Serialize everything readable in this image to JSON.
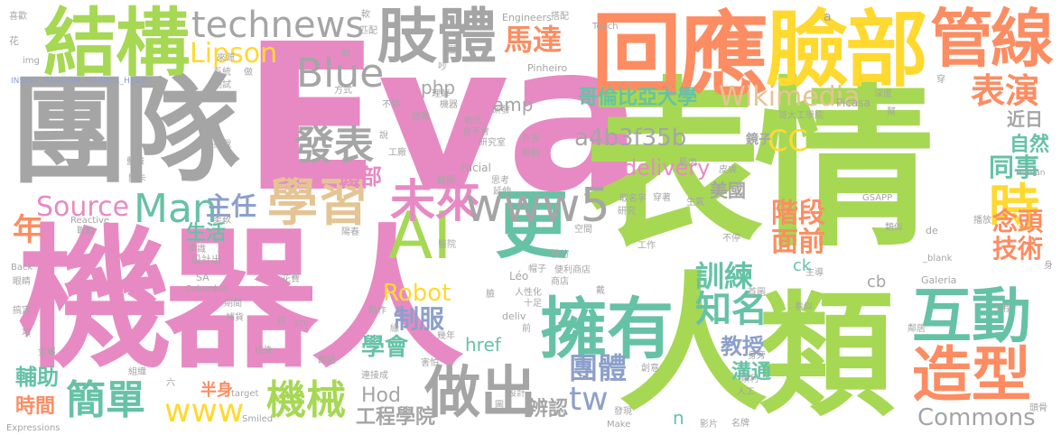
{
  "palette": {
    "pink": "#e78ac3",
    "green": "#a6d854",
    "gray": "#a5a5a5",
    "yellow": "#ffd92f",
    "orange": "#fc8d62",
    "teal": "#66c2a5",
    "blue": "#8da0cb",
    "tan": "#e5c494"
  },
  "words": {
    "w1": "Eva",
    "w2": "表情",
    "w3": "機器人",
    "w4": "團隊",
    "w5": "類",
    "w6": "人",
    "w7": "回應",
    "w8": "臉部",
    "w9": "結構",
    "w10": "肢體",
    "w11": "管線",
    "w12": "擁有",
    "w13": "互動",
    "w14": "造型",
    "w15": "AI",
    "w16": "更",
    "w17": "學習",
    "w18": "未來",
    "w19": "做出",
    "w20": "簡單",
    "w21": "機械",
    "w22": "發表",
    "w23": "technews",
    "w24": "Blue",
    "w25": "www5",
    "w26": "表演",
    "w27": "馬達",
    "w28": "Lipson",
    "w29": "哥倫比亞大學",
    "w30": "Wikimedia",
    "w31": "CC",
    "w32": "Man",
    "w33": "Source",
    "w34": "主任",
    "w35": "年",
    "w36": "時",
    "w37": "知名",
    "w38": "團體",
    "w39": "www",
    "w40": "tw",
    "w41": "Commons",
    "w42": "Robot",
    "w43": "制服",
    "w44": "學會",
    "w45": "教授",
    "w46": "同事",
    "w47": "技術",
    "w48": "面前",
    "w49": "階段",
    "w50": "自然",
    "w51": "念頭",
    "w52": "訓練",
    "w53": "頭部",
    "w54": "php",
    "w55": "amp",
    "w56": "a4b3f35b",
    "w57": "delivery",
    "w58": "美國",
    "w59": "生活",
    "w60": "輔助",
    "w61": "時間",
    "w62": "Hod",
    "w63": "工程學院",
    "w64": "辨認",
    "w65": "溝通",
    "w66": "近日",
    "w67": "半身",
    "w68": "href",
    "w69": "ck",
    "w70": "cb",
    "w71": "n",
    "w72": "鏡子",
    "w73": "設計出",
    "w74": "Columbia",
    "w75": "SA",
    "w76": "Facial",
    "w77": "Léo",
    "w78": "deliv",
    "w79": "Galeria",
    "w80": "Picasa",
    "w81": "Pinheiro",
    "w82": "Engineers",
    "w83": "Teach",
    "w84": "Expressions",
    "w85": "Smiled",
    "w86": "target",
    "w87": "Reactive",
    "w88": "Human",
    "w89": "Make",
    "w90": "src",
    "w91": "de",
    "w92": "_blank",
    "w93": "GSAPP",
    "w94": "img",
    "w95": "INSERT_RANDOM_NUMBER_HERE",
    "w96": "Back",
    "w97": "喜歡",
    "w98": "花",
    "w99": "系統",
    "w100": "測試",
    "w101": "機器",
    "w102": "研究室",
    "w103": "理解",
    "w104": "研發",
    "w105": "概念",
    "w106": "外表",
    "w107": "不禁",
    "w108": "困難",
    "w109": "會不會",
    "w110": "眼前",
    "w111": "工廠",
    "w112": "挑戰",
    "w113": "說",
    "w114": "延伸",
    "w115": "思考",
    "w116": "肌肉",
    "w117": "哥大工學院",
    "w118": "深度",
    "w119": "穿著",
    "w120": "皮膚",
    "w121": "取名字",
    "w122": "生氣",
    "w123": "類似",
    "w124": "工作",
    "w125": "不停",
    "w126": "空間",
    "w127": "模仿",
    "w128": "便利商店",
    "w129": "帽子",
    "w130": "醫院",
    "w131": "商店",
    "w132": "人性化",
    "w133": "動作",
    "w134": "補貨",
    "w135": "期間",
    "w136": "往後",
    "w137": "翻過",
    "w138": "幾年",
    "w139": "害怕",
    "w140": "連接成",
    "w141": "設計",
    "w142": "發現",
    "w143": "影片",
    "w144": "名牌",
    "w145": "人工",
    "w146": "順利",
    "w147": "身旁",
    "w148": "看似",
    "w149": "首圖",
    "w150": "主導",
    "w151": "工程",
    "w152": "鄰居",
    "w153": "頭骨",
    "w154": "組織",
    "w155": "金屬",
    "w156": "眼睛",
    "w157": "搞定",
    "w158": "項",
    "w159": "辨識",
    "w160": "聯動",
    "w161": "柔軟",
    "w162": "關卡",
    "w163": "藍臉",
    "w164": "來源",
    "w165": "匹配",
    "w166": "搭配",
    "w167": "軟",
    "w168": "做",
    "w169": "方式",
    "w170": "研究",
    "w171": "十足",
    "w172": "創意",
    "w173": "戴",
    "w174": "蛋",
    "w175": "叫",
    "w176": "圖",
    "w177": "六",
    "w178": "播放",
    "w179": "幫",
    "w180": "身",
    "w181": "花費",
    "w182": "陽春",
    "w183": "緣",
    "w184": "穿",
    "w185": "臉",
    "w186": "前",
    "w187": "截圖",
    "w188": "週",
    "w189": "吵",
    "w190": "a"
  }
}
